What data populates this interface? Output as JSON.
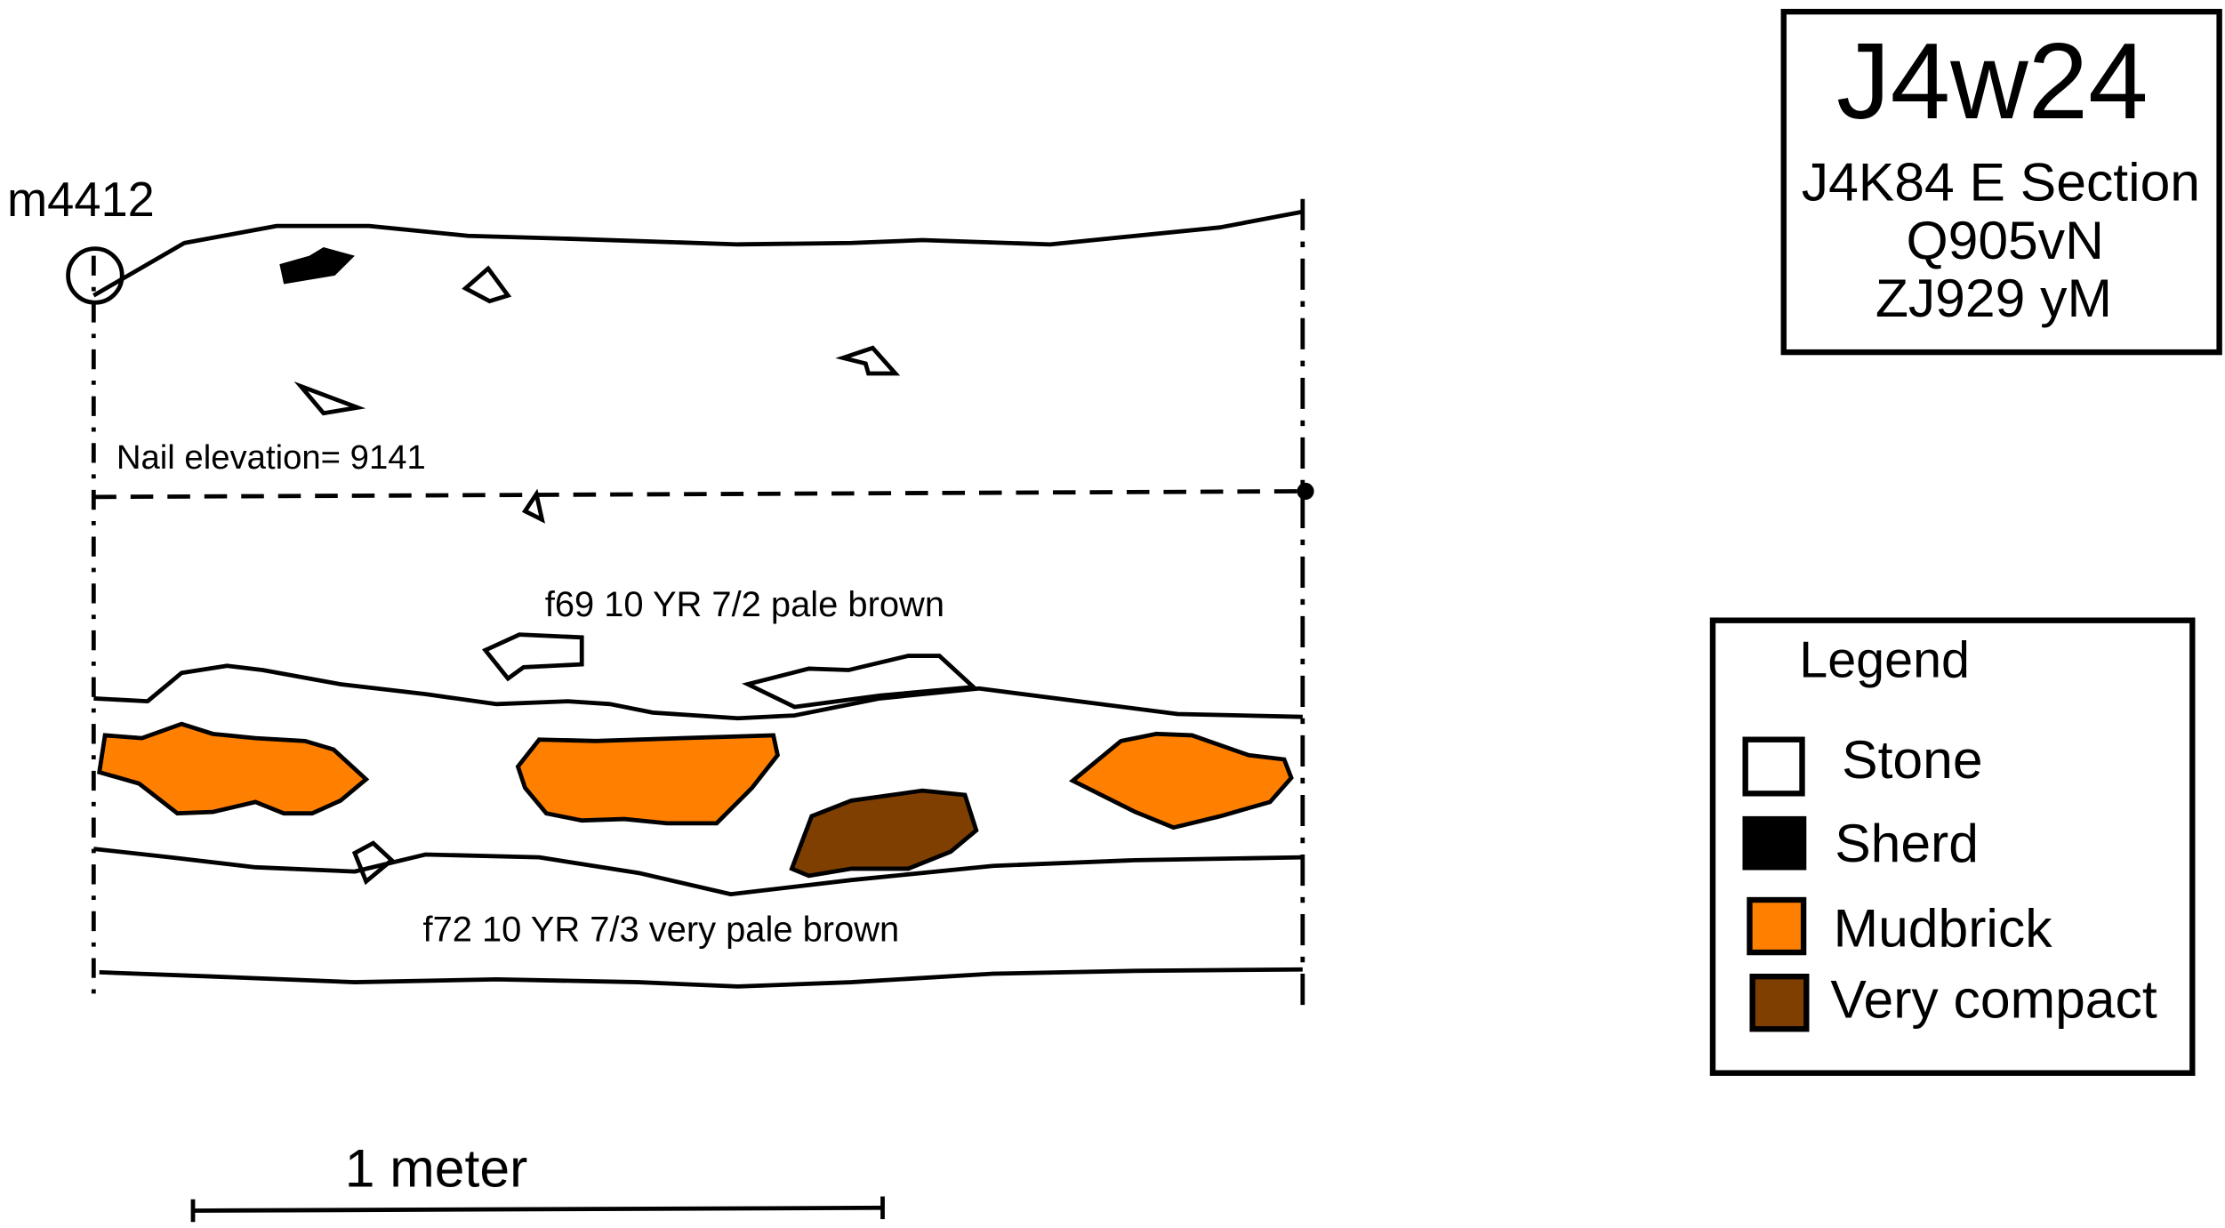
{
  "title_box": {
    "code": "J4w24",
    "section": "J4K84 E Section",
    "line2": "Q905vN",
    "line3": "ZJ929 yM"
  },
  "drawing": {
    "datum_label": "m4412",
    "nail_elevation": "Nail elevation= 9141",
    "layer_upper": "f69  10 YR 7/2 pale brown",
    "layer_lower": "f72  10 YR 7/3 very pale brown",
    "scale_label": "1 meter"
  },
  "legend": {
    "title": "Legend",
    "items": [
      {
        "label": "Stone",
        "color": "#ffffff"
      },
      {
        "label": "Sherd",
        "color": "#000000"
      },
      {
        "label": "Mudbrick",
        "color": "#ff8000"
      },
      {
        "label": "Very compact",
        "color": "#7f3f00"
      }
    ]
  }
}
